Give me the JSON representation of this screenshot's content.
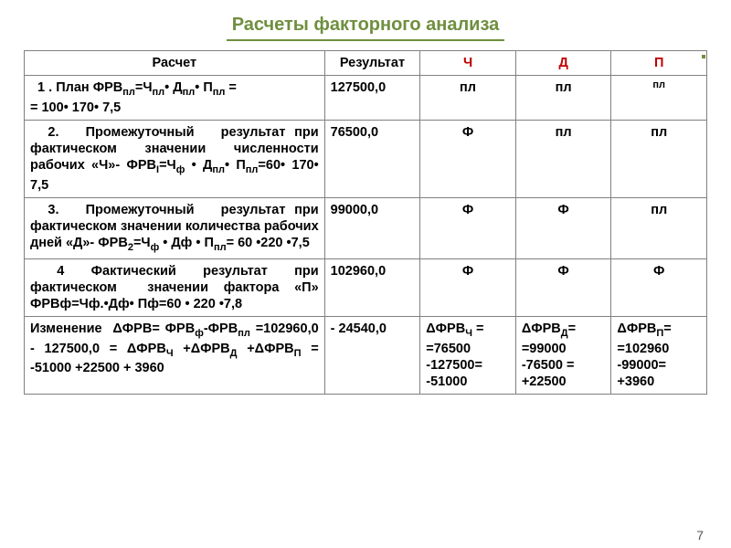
{
  "title": "Расчеты факторного анализа",
  "headers": {
    "calc": "Расчет",
    "result": "Результат",
    "ch": "Ч",
    "d": "Д",
    "p": "П"
  },
  "rows": [
    {
      "calc_html": "&nbsp;&nbsp;1 . План ФРВ<sub>пл</sub>=Ч<sub>пл</sub>• Д<sub>пл</sub>• П<sub>пл</sub> =<br>= 100• 170• 7,5",
      "result": "127500,0",
      "ch": "пл",
      "d": "пл",
      "p": "пл",
      "p_small": true
    },
    {
      "calc_html": "&nbsp;&nbsp;2.&nbsp;&nbsp;&nbsp;Промежуточный&nbsp;&nbsp;&nbsp;результат при фактическом значении численности рабочих «Ч»- ФРВ<sub>I</sub>=Ч<sub>ф</sub> • Д<sub>пл</sub>• П<sub>пл</sub>=60• 170• 7,5",
      "result": "76500,0",
      "ch": "Ф",
      "d": "пл",
      "p": "пл"
    },
    {
      "calc_html": "&nbsp;&nbsp;3.&nbsp;&nbsp;&nbsp;Промежуточный&nbsp;&nbsp;&nbsp;результат при фактическом значении количества рабочих дней «Д»- ФРВ<sub>2</sub>=Ч<sub>ф</sub> • Дф • П<sub>пл</sub>= 60 •220 •7,5",
      "result": "99000,0",
      "ch": "Ф",
      "d": "Ф",
      "p": "пл"
    },
    {
      "calc_html": "&nbsp;&nbsp;4&nbsp;&nbsp;Фактический&nbsp;&nbsp;результат&nbsp;&nbsp;при фактическом&nbsp;&nbsp;значении фактора «П» ФРВф=Чф.•Дф• Пф=60 • 220 •7,8",
      "result": "102960,0",
      "ch": "Ф",
      "d": "Ф",
      "p": "Ф"
    },
    {
      "calc_html": "Изменение &nbsp;ΔФРВ= ФРВ<sub>ф</sub>-ФРВ<sub>пл</sub> =102960,0 - 127500,0 = ΔФРВ<sub>Ч</sub> +ΔФРВ<sub>Д</sub> +ΔФРВ<sub>П</sub> = -51000 +22500 + 3960",
      "result": "- 24540,0",
      "ch_html": "ΔФРВ<sub>Ч</sub> = =76500 -127500= -51000",
      "d_html": "ΔФРВ<sub>Д</sub>= =99000 -76500 = +22500",
      "p_html": "ΔФРВ<sub>П</sub>= =102960 -99000= +3960"
    }
  ],
  "page_number": "7",
  "colors": {
    "accent_green": "#6f8f3e",
    "accent_red": "#c00000",
    "border": "#808080",
    "text": "#000000",
    "pagenum": "#555555",
    "background": "#ffffff"
  },
  "fonts": {
    "title_size_pt": 20,
    "body_size_pt": 14.5,
    "small_size_pt": 11
  }
}
